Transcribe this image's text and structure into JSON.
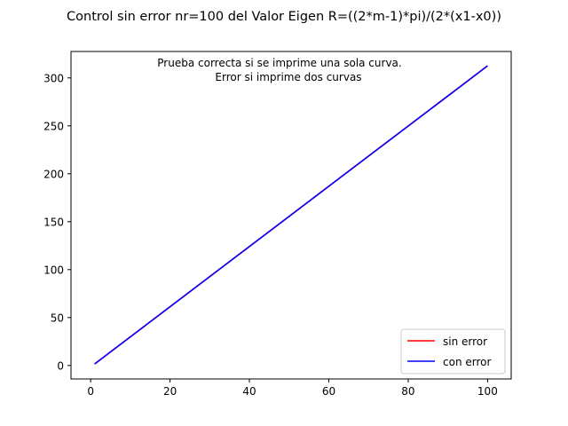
{
  "chart_data": {
    "type": "line",
    "title": "Control sin error  nr=100 del Valor Eigen R=((2*m-1)*pi)/(2*(x1-x0))",
    "annotation": [
      "Prueba correcta si se imprime una sola curva.",
      "Error si imprime dos curvas"
    ],
    "xlabel": "",
    "ylabel": "",
    "xlim": [
      -4.95,
      105.95
    ],
    "ylim": [
      -14.06,
      327.56
    ],
    "xticks": [
      0,
      20,
      40,
      60,
      80,
      100
    ],
    "yticks": [
      0,
      50,
      100,
      150,
      200,
      250,
      300
    ],
    "xtick_labels": [
      "0",
      "20",
      "40",
      "60",
      "80",
      "100"
    ],
    "ytick_labels": [
      "0",
      "50",
      "100",
      "150",
      "200",
      "250",
      "300"
    ],
    "grid": false,
    "legend_position": "lower-right",
    "series": [
      {
        "name": "sin error",
        "color": "#ff0000",
        "x": [
          1,
          100
        ],
        "y": [
          1.5708,
          312.588
        ]
      },
      {
        "name": "con error",
        "color": "#0000ff",
        "x": [
          1,
          100
        ],
        "y": [
          1.5708,
          312.588
        ]
      }
    ]
  }
}
